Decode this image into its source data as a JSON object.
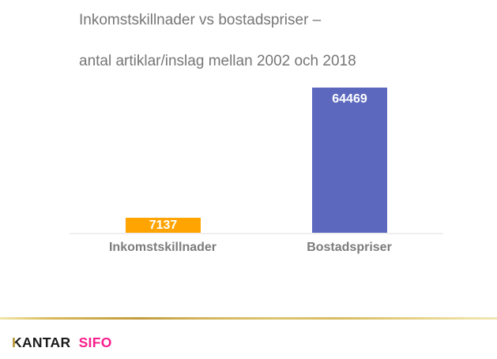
{
  "slide": {
    "title_line1": "Inkomstskillnader vs bostadspriser –",
    "title_line2": "antal artiklar/inslag mellan 2002 och 2018"
  },
  "chart_data": {
    "type": "bar",
    "title": "Inkomstskillnader vs bostadspriser – antal artiklar/inslag mellan 2002 och 2018",
    "categories": [
      "Inkomstskillnader",
      "Bostadspriser"
    ],
    "values": [
      7137,
      64469
    ],
    "value_labels": [
      "7137",
      "64469"
    ],
    "bar_colors": [
      "#ffa400",
      "#5b68be"
    ],
    "value_label_color": "#ffffff",
    "category_label_color": "#7c7c7c",
    "title_color": "#767676",
    "baseline_color": "#efefef",
    "xlabel": "",
    "ylabel": "",
    "ylim": [
      0,
      70000
    ],
    "grid": false,
    "legend": false
  },
  "footer": {
    "logo_kantar_k": "K",
    "logo_kantar_rest": "ANTAR",
    "logo_sifo": "SIFO",
    "kantar_color": "#1b1b1b",
    "sifo_color": "#fa1e8c",
    "accent_rule_color": "#d4b85e"
  }
}
